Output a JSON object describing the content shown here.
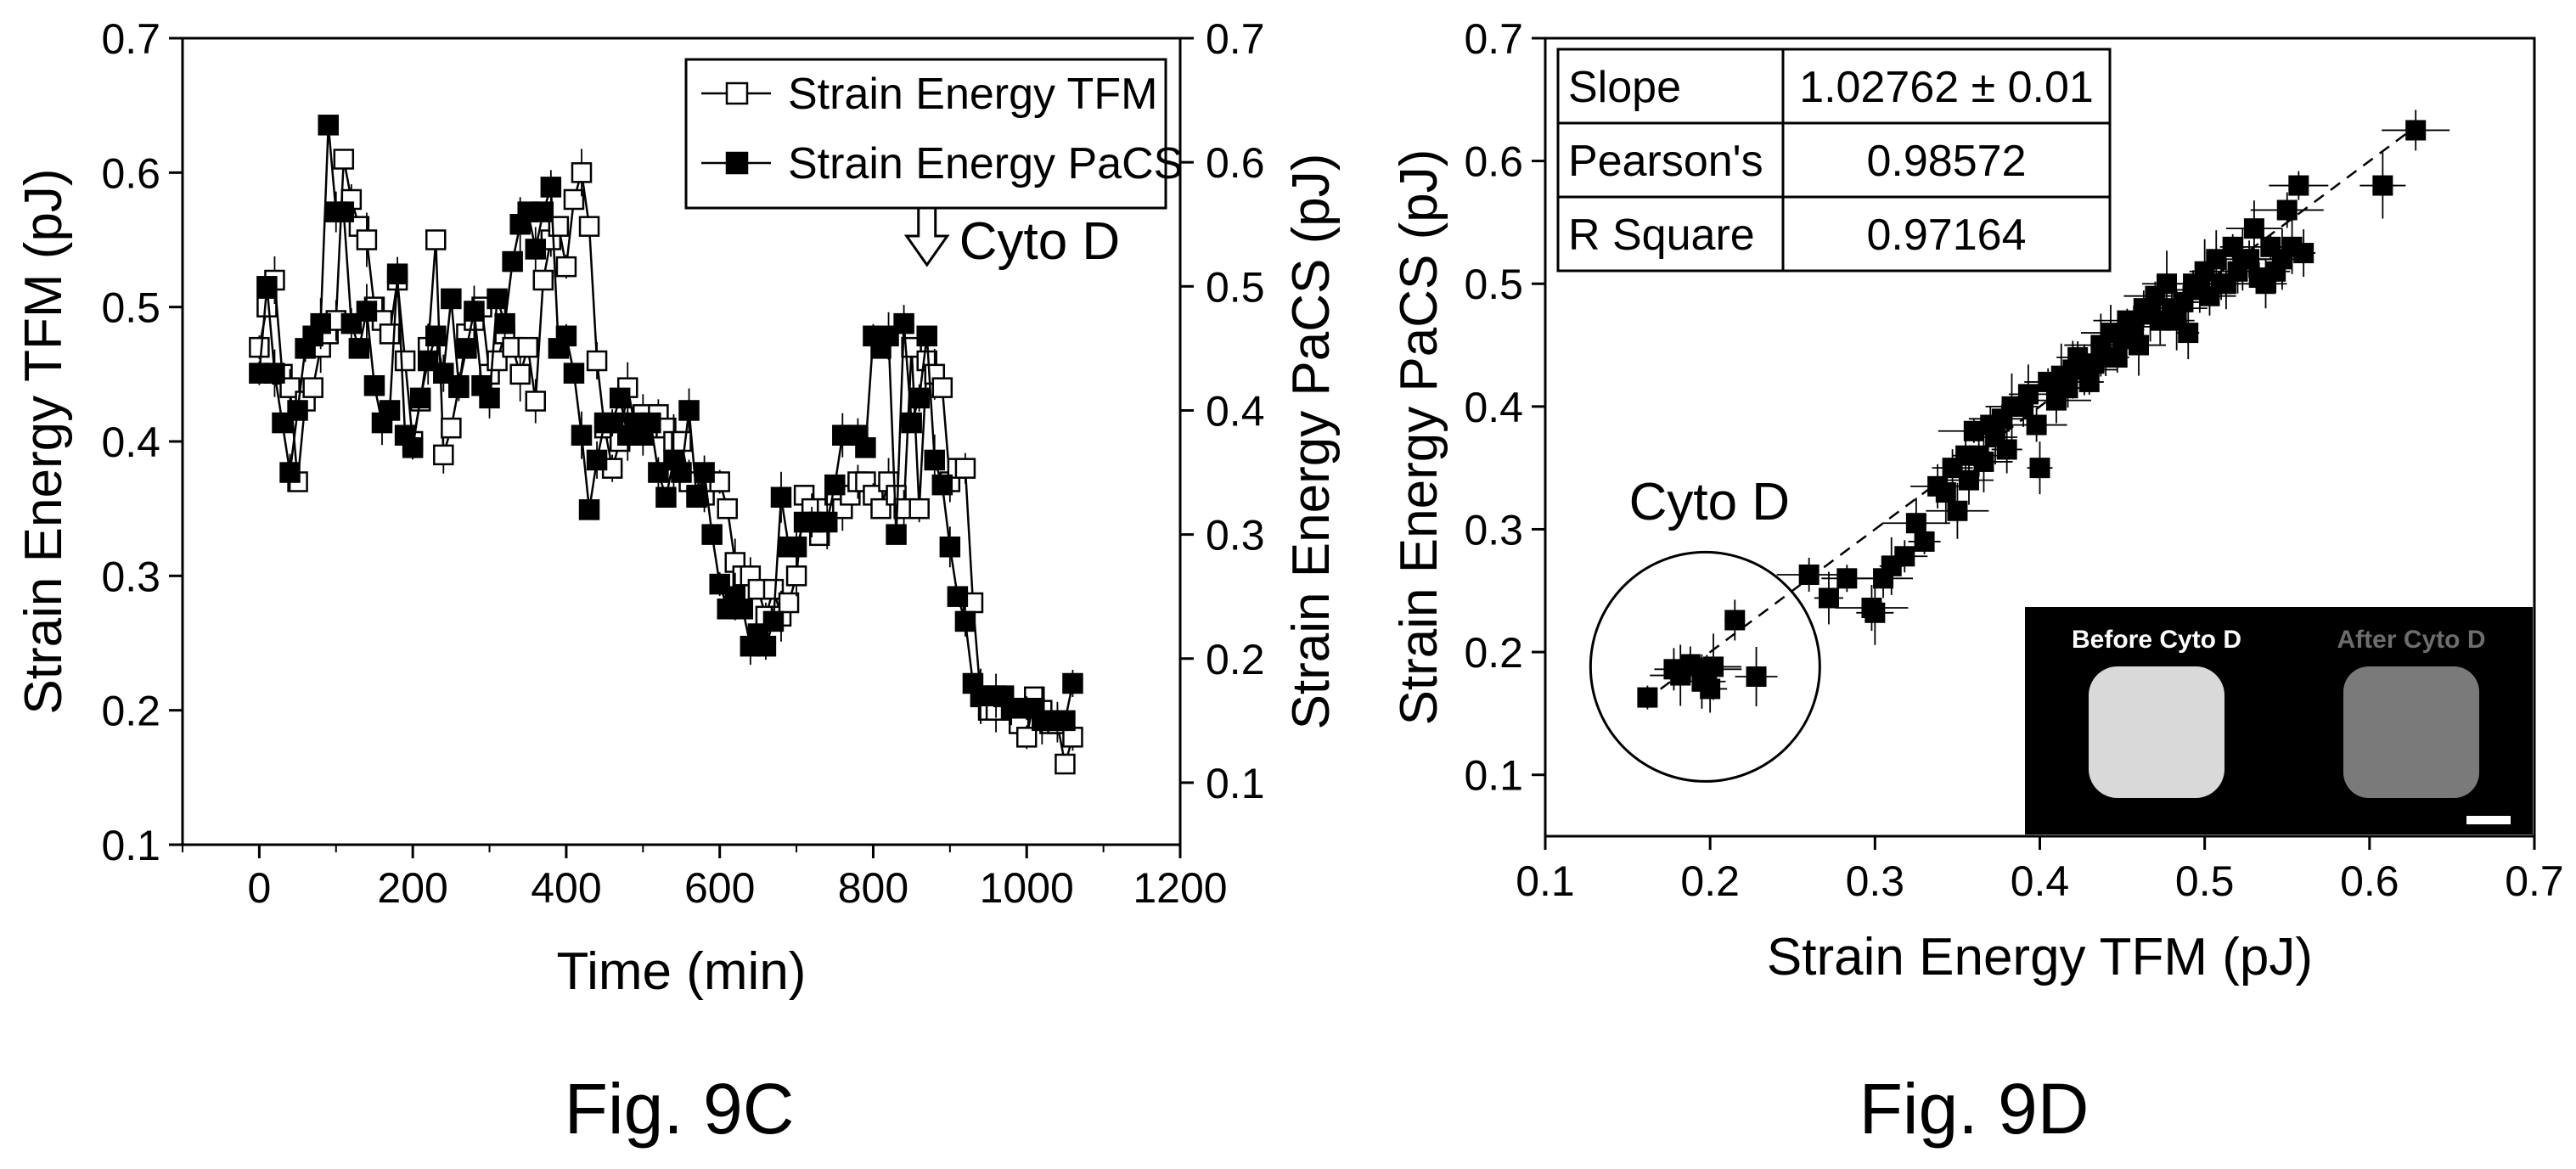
{
  "figures": {
    "c": {
      "caption": "Fig. 9C"
    },
    "d": {
      "caption": "Fig. 9D"
    }
  },
  "chart_data": [
    {
      "type": "scatter",
      "xlabel": "Time (min)",
      "ylabel": "Strain Energy TFM (pJ)",
      "ylabel_right": "Strain Energy PaCS (pJ)",
      "xlim": [
        -100,
        1200
      ],
      "ylim": [
        0.1,
        0.7
      ],
      "ylim_right": [
        0.05,
        0.7
      ],
      "x_ticks": [
        "0",
        "200",
        "400",
        "600",
        "800",
        "1000",
        "1200"
      ],
      "x_tick_values": [
        0,
        200,
        400,
        600,
        800,
        1000,
        1200
      ],
      "y_ticks": [
        "0.1",
        "0.2",
        "0.3",
        "0.4",
        "0.5",
        "0.6",
        "0.7"
      ],
      "y_tick_values": [
        0.1,
        0.2,
        0.3,
        0.4,
        0.5,
        0.6,
        0.7
      ],
      "y_ticks_right": [
        "0.1",
        "0.2",
        "0.3",
        "0.4",
        "0.5",
        "0.6",
        "0.7"
      ],
      "y_tick_values_right": [
        0.1,
        0.2,
        0.3,
        0.4,
        0.5,
        0.6,
        0.7
      ],
      "legend": "top-right",
      "grid": false,
      "annotation": {
        "text": "Cyto D",
        "x": 870
      },
      "series": [
        {
          "name": "Strain Energy TFM",
          "marker": "open-square",
          "axis": "left",
          "x": [
            0,
            10,
            20,
            30,
            40,
            50,
            60,
            70,
            80,
            90,
            100,
            110,
            120,
            130,
            140,
            150,
            160,
            170,
            180,
            190,
            200,
            210,
            220,
            230,
            240,
            250,
            260,
            270,
            280,
            290,
            300,
            310,
            320,
            330,
            340,
            350,
            360,
            370,
            380,
            390,
            400,
            410,
            420,
            430,
            440,
            450,
            460,
            470,
            480,
            490,
            500,
            510,
            520,
            530,
            540,
            550,
            560,
            570,
            580,
            590,
            600,
            610,
            620,
            630,
            640,
            650,
            660,
            670,
            680,
            690,
            700,
            710,
            720,
            730,
            740,
            750,
            760,
            770,
            780,
            790,
            800,
            810,
            820,
            830,
            840,
            850,
            860,
            870,
            880,
            890,
            900,
            910,
            920,
            930,
            940,
            950,
            960,
            970,
            980,
            990,
            1000,
            1010,
            1020,
            1030,
            1040,
            1050,
            1060
          ],
          "y": [
            0.47,
            0.5,
            0.52,
            0.45,
            0.44,
            0.37,
            0.43,
            0.44,
            0.47,
            0.48,
            0.49,
            0.61,
            0.58,
            0.56,
            0.55,
            0.5,
            0.49,
            0.48,
            0.52,
            0.46,
            0.4,
            0.43,
            0.47,
            0.55,
            0.39,
            0.41,
            0.44,
            0.48,
            0.49,
            0.5,
            0.45,
            0.46,
            0.48,
            0.47,
            0.45,
            0.47,
            0.43,
            0.52,
            0.55,
            0.56,
            0.53,
            0.58,
            0.6,
            0.56,
            0.46,
            0.41,
            0.38,
            0.4,
            0.44,
            0.41,
            0.42,
            0.41,
            0.42,
            0.41,
            0.4,
            0.4,
            0.37,
            0.36,
            0.36,
            0.37,
            0.37,
            0.35,
            0.31,
            0.3,
            0.3,
            0.29,
            0.27,
            0.29,
            0.27,
            0.28,
            0.3,
            0.36,
            0.35,
            0.33,
            0.35,
            0.36,
            0.35,
            0.36,
            0.37,
            0.37,
            0.36,
            0.35,
            0.37,
            0.36,
            0.35,
            0.47,
            0.35,
            0.46,
            0.45,
            0.44,
            0.37,
            0.38,
            0.38,
            0.28,
            0.21,
            0.2,
            0.2,
            0.21,
            0.2,
            0.19,
            0.18,
            0.21,
            0.2,
            0.19,
            0.19,
            0.16,
            0.18
          ]
        },
        {
          "name": "Strain Energy PaCS",
          "marker": "filled-square",
          "axis": "right",
          "x": [
            0,
            10,
            20,
            30,
            40,
            50,
            60,
            70,
            80,
            90,
            100,
            110,
            120,
            130,
            140,
            150,
            160,
            170,
            180,
            190,
            200,
            210,
            220,
            230,
            240,
            250,
            260,
            270,
            280,
            290,
            300,
            310,
            320,
            330,
            340,
            350,
            360,
            370,
            380,
            390,
            400,
            410,
            420,
            430,
            440,
            450,
            460,
            470,
            480,
            490,
            500,
            510,
            520,
            530,
            540,
            550,
            560,
            570,
            580,
            590,
            600,
            610,
            620,
            630,
            640,
            650,
            660,
            670,
            680,
            690,
            700,
            710,
            720,
            730,
            740,
            750,
            760,
            770,
            780,
            790,
            800,
            810,
            820,
            830,
            840,
            850,
            860,
            870,
            880,
            890,
            900,
            910,
            920,
            930,
            940,
            950,
            960,
            970,
            980,
            990,
            1000,
            1010,
            1020,
            1030,
            1040,
            1050,
            1060
          ],
          "y": [
            0.43,
            0.5,
            0.43,
            0.39,
            0.35,
            0.4,
            0.45,
            0.46,
            0.47,
            0.63,
            0.56,
            0.56,
            0.47,
            0.45,
            0.48,
            0.42,
            0.39,
            0.4,
            0.51,
            0.38,
            0.37,
            0.41,
            0.44,
            0.46,
            0.43,
            0.49,
            0.42,
            0.45,
            0.48,
            0.42,
            0.41,
            0.49,
            0.47,
            0.52,
            0.55,
            0.56,
            0.53,
            0.56,
            0.58,
            0.45,
            0.46,
            0.43,
            0.38,
            0.32,
            0.36,
            0.39,
            0.39,
            0.41,
            0.38,
            0.39,
            0.38,
            0.39,
            0.35,
            0.33,
            0.36,
            0.35,
            0.4,
            0.33,
            0.35,
            0.3,
            0.26,
            0.24,
            0.25,
            0.24,
            0.21,
            0.22,
            0.21,
            0.23,
            0.33,
            0.29,
            0.29,
            0.31,
            0.31,
            0.31,
            0.31,
            0.34,
            0.38,
            0.38,
            0.38,
            0.37,
            0.46,
            0.45,
            0.46,
            0.3,
            0.47,
            0.39,
            0.41,
            0.46,
            0.36,
            0.34,
            0.29,
            0.25,
            0.23,
            0.18,
            0.17,
            0.17,
            0.17,
            0.17,
            0.16,
            0.16,
            0.16,
            0.16,
            0.15,
            0.15,
            0.15,
            0.15,
            0.18
          ]
        }
      ]
    },
    {
      "type": "scatter",
      "xlabel": "Strain Energy TFM (pJ)",
      "ylabel": "Strain Energy PaCS (pJ)",
      "xlim": [
        0.1,
        0.7
      ],
      "ylim": [
        0.05,
        0.7
      ],
      "x_ticks": [
        "0.1",
        "0.2",
        "0.3",
        "0.4",
        "0.5",
        "0.6",
        "0.7"
      ],
      "x_tick_values": [
        0.1,
        0.2,
        0.3,
        0.4,
        0.5,
        0.6,
        0.7
      ],
      "y_ticks": [
        "0.1",
        "0.2",
        "0.3",
        "0.4",
        "0.5",
        "0.6",
        "0.7"
      ],
      "y_tick_values": [
        0.1,
        0.2,
        0.3,
        0.4,
        0.5,
        0.6,
        0.7
      ],
      "grid": false,
      "fit_line": {
        "x": [
          0.16,
          0.63
        ],
        "y": [
          0.16,
          0.63
        ],
        "style": "dashed"
      },
      "stats_table": [
        {
          "label": "Slope",
          "value": "1.02762 ± 0.01"
        },
        {
          "label": "Pearson's",
          "value": "0.98572"
        },
        {
          "label": "R Square",
          "value": "0.97164"
        }
      ],
      "annotation": {
        "text": "Cyto D",
        "circle_center": [
          0.197,
          0.188
        ]
      },
      "inset": {
        "label_before": "Before Cyto D",
        "label_after": "After Cyto D",
        "placement": "bottom-right"
      },
      "series": [
        {
          "marker": "filled-square",
          "x": [
            0.162,
            0.178,
            0.182,
            0.188,
            0.195,
            0.198,
            0.2,
            0.202,
            0.215,
            0.228,
            0.26,
            0.272,
            0.283,
            0.298,
            0.3,
            0.305,
            0.31,
            0.318,
            0.325,
            0.33,
            0.338,
            0.343,
            0.347,
            0.35,
            0.355,
            0.357,
            0.36,
            0.363,
            0.366,
            0.37,
            0.373,
            0.377,
            0.38,
            0.383,
            0.39,
            0.393,
            0.398,
            0.4,
            0.405,
            0.41,
            0.413,
            0.417,
            0.42,
            0.423,
            0.427,
            0.43,
            0.433,
            0.437,
            0.44,
            0.443,
            0.447,
            0.45,
            0.453,
            0.457,
            0.46,
            0.463,
            0.467,
            0.47,
            0.473,
            0.477,
            0.48,
            0.483,
            0.487,
            0.49,
            0.493,
            0.497,
            0.5,
            0.503,
            0.507,
            0.51,
            0.513,
            0.517,
            0.52,
            0.523,
            0.527,
            0.53,
            0.533,
            0.537,
            0.54,
            0.543,
            0.547,
            0.55,
            0.553,
            0.557,
            0.56,
            0.608,
            0.628
          ],
          "y": [
            0.163,
            0.186,
            0.181,
            0.19,
            0.176,
            0.186,
            0.17,
            0.188,
            0.226,
            0.18,
            0.263,
            0.244,
            0.26,
            0.236,
            0.232,
            0.26,
            0.27,
            0.278,
            0.305,
            0.29,
            0.335,
            0.33,
            0.35,
            0.315,
            0.36,
            0.34,
            0.38,
            0.36,
            0.355,
            0.385,
            0.375,
            0.39,
            0.365,
            0.4,
            0.4,
            0.41,
            0.385,
            0.35,
            0.42,
            0.405,
            0.425,
            0.415,
            0.43,
            0.44,
            0.43,
            0.42,
            0.435,
            0.45,
            0.44,
            0.46,
            0.44,
            0.455,
            0.47,
            0.465,
            0.45,
            0.48,
            0.475,
            0.49,
            0.47,
            0.5,
            0.48,
            0.47,
            0.485,
            0.46,
            0.5,
            0.495,
            0.51,
            0.49,
            0.52,
            0.5,
            0.5,
            0.53,
            0.51,
            0.52,
            0.52,
            0.545,
            0.505,
            0.5,
            0.53,
            0.51,
            0.52,
            0.56,
            0.53,
            0.58,
            0.525,
            0.58,
            0.625
          ]
        }
      ]
    }
  ]
}
